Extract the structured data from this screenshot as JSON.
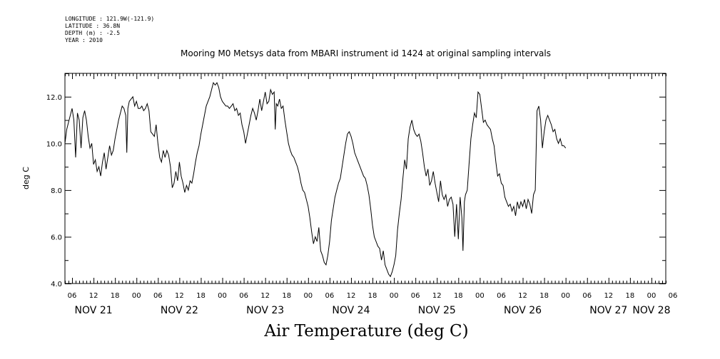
{
  "metadata": {
    "longitude": "LONGITUDE : 121.9W(-121.9)",
    "latitude": "LATITUDE : 36.8N",
    "depth": "DEPTH (m) : -2.5",
    "year": "YEAR : 2010"
  },
  "chart_data": {
    "type": "line",
    "title": "Mooring M0 Metsys data from MBARI instrument id 1424 at original sampling intervals",
    "ylabel": "deg C",
    "xlabel": "Air Temperature (deg C)",
    "ylim": [
      4.0,
      13.0
    ],
    "xlim": [
      4,
      172
    ],
    "x_units": "hours since Nov 21 00:00, 2010",
    "y_ticks": [
      "4.0",
      "6.0",
      "8.0",
      "10.0",
      "12.0"
    ],
    "x_hour_ticks": [
      {
        "x": 6,
        "label": "06"
      },
      {
        "x": 12,
        "label": "12"
      },
      {
        "x": 18,
        "label": "18"
      },
      {
        "x": 24,
        "label": "00"
      },
      {
        "x": 30,
        "label": "06"
      },
      {
        "x": 36,
        "label": "12"
      },
      {
        "x": 42,
        "label": "18"
      },
      {
        "x": 48,
        "label": "00"
      },
      {
        "x": 54,
        "label": "06"
      },
      {
        "x": 60,
        "label": "12"
      },
      {
        "x": 66,
        "label": "18"
      },
      {
        "x": 72,
        "label": "00"
      },
      {
        "x": 78,
        "label": "06"
      },
      {
        "x": 84,
        "label": "12"
      },
      {
        "x": 90,
        "label": "18"
      },
      {
        "x": 96,
        "label": "00"
      },
      {
        "x": 102,
        "label": "06"
      },
      {
        "x": 108,
        "label": "12"
      },
      {
        "x": 114,
        "label": "18"
      },
      {
        "x": 120,
        "label": "00"
      },
      {
        "x": 126,
        "label": "06"
      },
      {
        "x": 132,
        "label": "12"
      },
      {
        "x": 138,
        "label": "18"
      },
      {
        "x": 144,
        "label": "00"
      },
      {
        "x": 150,
        "label": "06"
      },
      {
        "x": 156,
        "label": "12"
      },
      {
        "x": 162,
        "label": "18"
      },
      {
        "x": 168,
        "label": "00"
      },
      {
        "x": 174,
        "label": "06"
      }
    ],
    "day_labels": [
      {
        "x": 12,
        "label": "NOV 21"
      },
      {
        "x": 36,
        "label": "NOV 22"
      },
      {
        "x": 60,
        "label": "NOV 23"
      },
      {
        "x": 84,
        "label": "NOV 24"
      },
      {
        "x": 108,
        "label": "NOV 25"
      },
      {
        "x": 132,
        "label": "NOV 26"
      },
      {
        "x": 156,
        "label": "NOV 27"
      },
      {
        "x": 168,
        "label": "NOV 28"
      }
    ],
    "series": [
      {
        "values": [
          [
            4.0,
            10.0
          ],
          [
            4.5,
            10.6
          ],
          [
            5.0,
            10.9
          ],
          [
            5.5,
            11.2
          ],
          [
            6.0,
            11.5
          ],
          [
            6.5,
            11.0
          ],
          [
            7.0,
            9.4
          ],
          [
            7.5,
            11.3
          ],
          [
            8.0,
            11.0
          ],
          [
            8.5,
            9.8
          ],
          [
            9.0,
            11.1
          ],
          [
            9.5,
            11.4
          ],
          [
            10.0,
            11.0
          ],
          [
            10.5,
            10.3
          ],
          [
            11.0,
            9.8
          ],
          [
            11.5,
            10.0
          ],
          [
            12.0,
            9.1
          ],
          [
            12.5,
            9.3
          ],
          [
            13.0,
            8.8
          ],
          [
            13.5,
            9.0
          ],
          [
            14.0,
            8.6
          ],
          [
            14.5,
            9.2
          ],
          [
            15.0,
            9.6
          ],
          [
            15.5,
            8.9
          ],
          [
            16.0,
            9.4
          ],
          [
            16.5,
            9.9
          ],
          [
            17.0,
            9.5
          ],
          [
            17.5,
            9.7
          ],
          [
            18.0,
            10.2
          ],
          [
            18.5,
            10.6
          ],
          [
            19.0,
            11.0
          ],
          [
            19.5,
            11.3
          ],
          [
            20.0,
            11.6
          ],
          [
            20.5,
            11.5
          ],
          [
            21.0,
            11.2
          ],
          [
            21.3,
            9.6
          ],
          [
            21.6,
            11.5
          ],
          [
            22.0,
            11.8
          ],
          [
            22.5,
            11.9
          ],
          [
            23.0,
            12.0
          ],
          [
            23.5,
            11.6
          ],
          [
            24.0,
            11.8
          ],
          [
            24.5,
            11.5
          ],
          [
            25.0,
            11.5
          ],
          [
            25.5,
            11.6
          ],
          [
            26.0,
            11.4
          ],
          [
            26.5,
            11.5
          ],
          [
            27.0,
            11.7
          ],
          [
            27.5,
            11.4
          ],
          [
            28.0,
            10.5
          ],
          [
            28.5,
            10.4
          ],
          [
            29.0,
            10.3
          ],
          [
            29.5,
            10.8
          ],
          [
            30.0,
            10.0
          ],
          [
            30.5,
            9.4
          ],
          [
            31.0,
            9.2
          ],
          [
            31.5,
            9.7
          ],
          [
            32.0,
            9.4
          ],
          [
            32.5,
            9.7
          ],
          [
            33.0,
            9.5
          ],
          [
            33.5,
            9.0
          ],
          [
            34.0,
            8.1
          ],
          [
            34.5,
            8.3
          ],
          [
            35.0,
            8.8
          ],
          [
            35.5,
            8.4
          ],
          [
            36.0,
            9.2
          ],
          [
            36.5,
            8.6
          ],
          [
            37.0,
            8.3
          ],
          [
            37.5,
            7.9
          ],
          [
            38.0,
            8.2
          ],
          [
            38.5,
            8.0
          ],
          [
            39.0,
            8.4
          ],
          [
            39.5,
            8.3
          ],
          [
            40.0,
            8.7
          ],
          [
            40.5,
            9.2
          ],
          [
            41.0,
            9.6
          ],
          [
            41.5,
            9.9
          ],
          [
            42.0,
            10.4
          ],
          [
            42.5,
            10.8
          ],
          [
            43.0,
            11.2
          ],
          [
            43.5,
            11.6
          ],
          [
            44.0,
            11.8
          ],
          [
            44.5,
            12.0
          ],
          [
            45.0,
            12.3
          ],
          [
            45.5,
            12.6
          ],
          [
            46.0,
            12.5
          ],
          [
            46.5,
            12.6
          ],
          [
            47.0,
            12.4
          ],
          [
            47.5,
            12.0
          ],
          [
            48.0,
            11.8
          ],
          [
            48.5,
            11.7
          ],
          [
            49.0,
            11.6
          ],
          [
            49.5,
            11.6
          ],
          [
            50.0,
            11.5
          ],
          [
            50.5,
            11.6
          ],
          [
            51.0,
            11.7
          ],
          [
            51.5,
            11.4
          ],
          [
            52.0,
            11.5
          ],
          [
            52.5,
            11.2
          ],
          [
            53.0,
            11.3
          ],
          [
            53.5,
            10.8
          ],
          [
            54.0,
            10.5
          ],
          [
            54.5,
            10.0
          ],
          [
            55.0,
            10.4
          ],
          [
            55.5,
            10.8
          ],
          [
            56.0,
            11.2
          ],
          [
            56.5,
            11.5
          ],
          [
            57.0,
            11.3
          ],
          [
            57.5,
            11.0
          ],
          [
            58.0,
            11.4
          ],
          [
            58.5,
            11.9
          ],
          [
            59.0,
            11.4
          ],
          [
            59.5,
            11.8
          ],
          [
            60.0,
            12.2
          ],
          [
            60.5,
            11.7
          ],
          [
            61.0,
            11.8
          ],
          [
            61.5,
            12.3
          ],
          [
            62.0,
            12.1
          ],
          [
            62.5,
            12.2
          ],
          [
            62.8,
            10.6
          ],
          [
            63.1,
            11.7
          ],
          [
            63.5,
            11.6
          ],
          [
            64.0,
            11.9
          ],
          [
            64.5,
            11.5
          ],
          [
            65.0,
            11.6
          ],
          [
            65.5,
            11.0
          ],
          [
            66.0,
            10.5
          ],
          [
            66.5,
            10.0
          ],
          [
            67.0,
            9.7
          ],
          [
            67.5,
            9.5
          ],
          [
            68.0,
            9.4
          ],
          [
            68.5,
            9.2
          ],
          [
            69.0,
            9.0
          ],
          [
            69.5,
            8.7
          ],
          [
            70.0,
            8.3
          ],
          [
            70.5,
            8.0
          ],
          [
            71.0,
            7.9
          ],
          [
            71.5,
            7.6
          ],
          [
            72.0,
            7.3
          ],
          [
            72.5,
            6.8
          ],
          [
            73.0,
            6.2
          ],
          [
            73.5,
            5.7
          ],
          [
            74.0,
            6.0
          ],
          [
            74.5,
            5.8
          ],
          [
            75.0,
            6.4
          ],
          [
            75.5,
            5.4
          ],
          [
            76.0,
            5.2
          ],
          [
            76.5,
            4.9
          ],
          [
            77.0,
            4.8
          ],
          [
            77.5,
            5.2
          ],
          [
            78.0,
            5.8
          ],
          [
            78.5,
            6.7
          ],
          [
            79.0,
            7.2
          ],
          [
            79.5,
            7.7
          ],
          [
            80.0,
            8.0
          ],
          [
            80.5,
            8.3
          ],
          [
            81.0,
            8.5
          ],
          [
            81.5,
            9.0
          ],
          [
            82.0,
            9.5
          ],
          [
            82.5,
            10.0
          ],
          [
            83.0,
            10.4
          ],
          [
            83.5,
            10.5
          ],
          [
            84.0,
            10.3
          ],
          [
            84.5,
            10.0
          ],
          [
            85.0,
            9.6
          ],
          [
            85.5,
            9.4
          ],
          [
            86.0,
            9.2
          ],
          [
            86.5,
            9.0
          ],
          [
            87.0,
            8.8
          ],
          [
            87.5,
            8.6
          ],
          [
            88.0,
            8.5
          ],
          [
            88.5,
            8.2
          ],
          [
            89.0,
            7.8
          ],
          [
            89.5,
            7.2
          ],
          [
            90.0,
            6.5
          ],
          [
            90.5,
            6.0
          ],
          [
            91.0,
            5.8
          ],
          [
            91.5,
            5.6
          ],
          [
            92.0,
            5.5
          ],
          [
            92.5,
            5.0
          ],
          [
            93.0,
            5.4
          ],
          [
            93.5,
            4.8
          ],
          [
            94.0,
            4.6
          ],
          [
            94.5,
            4.4
          ],
          [
            95.0,
            4.3
          ],
          [
            95.5,
            4.5
          ],
          [
            96.0,
            4.8
          ],
          [
            96.5,
            5.2
          ],
          [
            97.0,
            6.3
          ],
          [
            97.5,
            7.0
          ],
          [
            98.0,
            7.6
          ],
          [
            98.5,
            8.5
          ],
          [
            99.0,
            9.3
          ],
          [
            99.5,
            8.9
          ],
          [
            100.0,
            10.2
          ],
          [
            100.5,
            10.7
          ],
          [
            101.0,
            11.0
          ],
          [
            101.5,
            10.6
          ],
          [
            102.0,
            10.4
          ],
          [
            102.5,
            10.3
          ],
          [
            103.0,
            10.4
          ],
          [
            103.5,
            10.1
          ],
          [
            104.0,
            9.6
          ],
          [
            104.5,
            9.0
          ],
          [
            105.0,
            8.6
          ],
          [
            105.5,
            8.9
          ],
          [
            106.0,
            8.2
          ],
          [
            106.5,
            8.4
          ],
          [
            107.0,
            8.8
          ],
          [
            107.5,
            8.3
          ],
          [
            108.0,
            7.9
          ],
          [
            108.5,
            7.5
          ],
          [
            109.0,
            8.4
          ],
          [
            109.5,
            7.8
          ],
          [
            110.0,
            7.6
          ],
          [
            110.5,
            7.8
          ],
          [
            111.0,
            7.3
          ],
          [
            111.5,
            7.6
          ],
          [
            112.0,
            7.7
          ],
          [
            112.5,
            7.4
          ],
          [
            113.0,
            6.0
          ],
          [
            113.5,
            7.4
          ],
          [
            114.0,
            5.9
          ],
          [
            114.5,
            7.7
          ],
          [
            115.0,
            6.8
          ],
          [
            115.3,
            5.4
          ],
          [
            115.7,
            7.5
          ],
          [
            116.0,
            7.8
          ],
          [
            116.5,
            8.0
          ],
          [
            117.0,
            9.1
          ],
          [
            117.5,
            10.2
          ],
          [
            118.0,
            10.8
          ],
          [
            118.5,
            11.3
          ],
          [
            119.0,
            11.1
          ],
          [
            119.5,
            12.2
          ],
          [
            120.0,
            12.1
          ],
          [
            120.5,
            11.5
          ],
          [
            121.0,
            10.9
          ],
          [
            121.5,
            11.0
          ],
          [
            122.0,
            10.8
          ],
          [
            122.5,
            10.7
          ],
          [
            123.0,
            10.6
          ],
          [
            123.5,
            10.2
          ],
          [
            124.0,
            9.9
          ],
          [
            124.5,
            9.2
          ],
          [
            125.0,
            8.6
          ],
          [
            125.5,
            8.7
          ],
          [
            126.0,
            8.3
          ],
          [
            126.5,
            8.2
          ],
          [
            127.0,
            7.7
          ],
          [
            127.5,
            7.5
          ],
          [
            128.0,
            7.3
          ],
          [
            128.5,
            7.4
          ],
          [
            129.0,
            7.1
          ],
          [
            129.5,
            7.3
          ],
          [
            130.0,
            6.9
          ],
          [
            130.5,
            7.5
          ],
          [
            131.0,
            7.2
          ],
          [
            131.5,
            7.5
          ],
          [
            132.0,
            7.3
          ],
          [
            132.5,
            7.6
          ],
          [
            133.0,
            7.2
          ],
          [
            133.5,
            7.6
          ],
          [
            134.0,
            7.4
          ],
          [
            134.5,
            7.0
          ],
          [
            135.0,
            7.8
          ],
          [
            135.5,
            8.0
          ],
          [
            136.0,
            11.4
          ],
          [
            136.5,
            11.6
          ],
          [
            137.0,
            11.0
          ],
          [
            137.5,
            9.8
          ],
          [
            138.0,
            10.5
          ],
          [
            138.5,
            11.0
          ],
          [
            139.0,
            11.2
          ],
          [
            139.5,
            11.0
          ],
          [
            140.0,
            10.8
          ],
          [
            140.5,
            10.5
          ],
          [
            141.0,
            10.6
          ],
          [
            141.5,
            10.2
          ],
          [
            142.0,
            10.0
          ],
          [
            142.5,
            10.2
          ],
          [
            143.0,
            9.9
          ],
          [
            143.5,
            9.9
          ],
          [
            144.0,
            9.8
          ]
        ]
      }
    ]
  }
}
